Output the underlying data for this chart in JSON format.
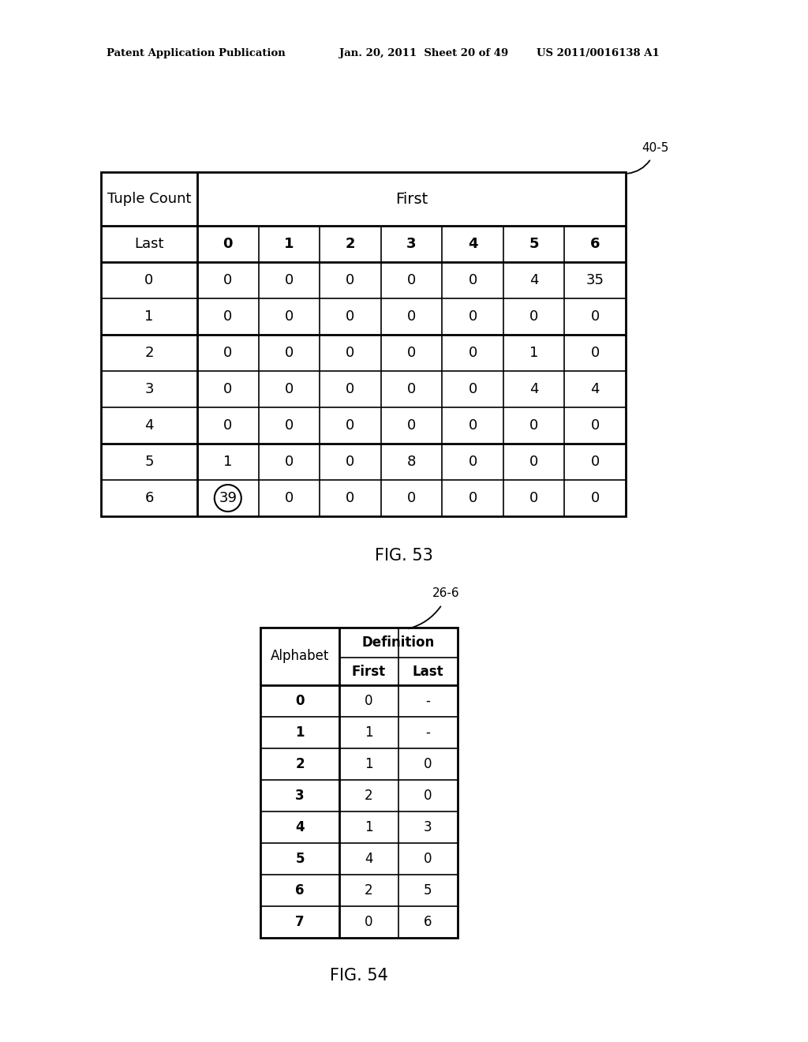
{
  "header_text_left": "Patent Application Publication",
  "header_text_mid": "Jan. 20, 2011  Sheet 20 of 49",
  "header_text_right": "US 2011/0016138 A1",
  "fig53_label": "FIG. 53",
  "fig54_label": "FIG. 54",
  "table1_ref": "40-5",
  "table2_ref": "26-6",
  "table1": {
    "title_left": "Tuple Count",
    "title_right": "First",
    "col_headers": [
      "Last",
      "0",
      "1",
      "2",
      "3",
      "4",
      "5",
      "6"
    ],
    "rows": [
      [
        "0",
        "0",
        "0",
        "0",
        "0",
        "0",
        "4",
        "35"
      ],
      [
        "1",
        "0",
        "0",
        "0",
        "0",
        "0",
        "0",
        "0"
      ],
      [
        "2",
        "0",
        "0",
        "0",
        "0",
        "0",
        "1",
        "0"
      ],
      [
        "3",
        "0",
        "0",
        "0",
        "0",
        "0",
        "4",
        "4"
      ],
      [
        "4",
        "0",
        "0",
        "0",
        "0",
        "0",
        "0",
        "0"
      ],
      [
        "5",
        "1",
        "0",
        "0",
        "8",
        "0",
        "0",
        "0"
      ],
      [
        "6",
        "39",
        "0",
        "0",
        "0",
        "0",
        "0",
        "0"
      ]
    ],
    "circled_cell_row": 6,
    "circled_cell_col": 0,
    "thick_lines_before_rows": [
      0,
      2,
      5
    ]
  },
  "table2": {
    "rows": [
      [
        "0",
        "0",
        "-"
      ],
      [
        "1",
        "1",
        "-"
      ],
      [
        "2",
        "1",
        "0"
      ],
      [
        "3",
        "2",
        "0"
      ],
      [
        "4",
        "1",
        "3"
      ],
      [
        "5",
        "4",
        "0"
      ],
      [
        "6",
        "2",
        "5"
      ],
      [
        "7",
        "0",
        "6"
      ]
    ]
  },
  "bg_color": "#ffffff",
  "text_color": "#000000"
}
